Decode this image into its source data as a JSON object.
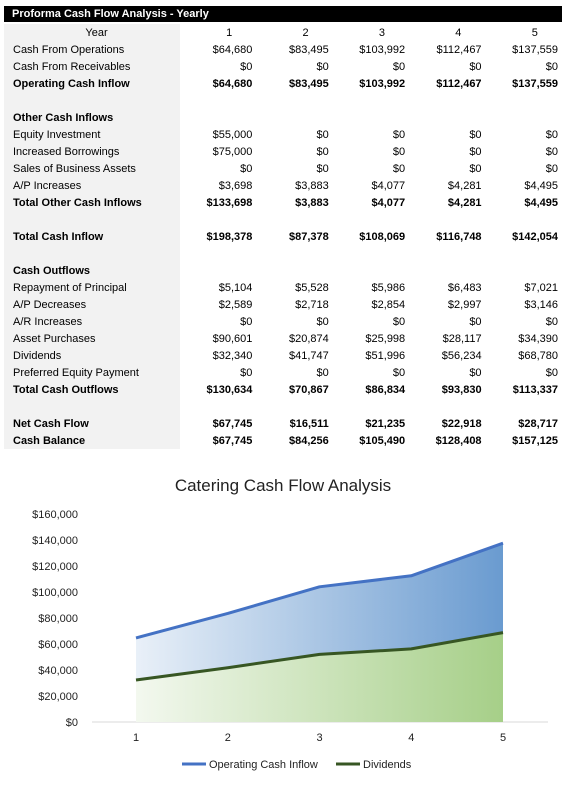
{
  "table": {
    "title": "Proforma Cash Flow Analysis - Yearly",
    "rows": [
      {
        "label": "Year",
        "values": [
          "1",
          "2",
          "3",
          "4",
          "5"
        ],
        "style": "hdr"
      },
      {
        "label": "Cash From Operations",
        "values": [
          "$64,680",
          "$83,495",
          "$103,992",
          "$112,467",
          "$137,559"
        ],
        "style": ""
      },
      {
        "label": "Cash From Receivables",
        "values": [
          "$0",
          "$0",
          "$0",
          "$0",
          "$0"
        ],
        "style": ""
      },
      {
        "label": "Operating Cash Inflow",
        "values": [
          "$64,680",
          "$83,495",
          "$103,992",
          "$112,467",
          "$137,559"
        ],
        "style": "bold"
      },
      {
        "label": "",
        "values": [],
        "style": "spacer"
      },
      {
        "label": "Other Cash Inflows",
        "values": [],
        "style": "bold"
      },
      {
        "label": "Equity Investment",
        "values": [
          "$55,000",
          "$0",
          "$0",
          "$0",
          "$0"
        ],
        "style": ""
      },
      {
        "label": "Increased Borrowings",
        "values": [
          "$75,000",
          "$0",
          "$0",
          "$0",
          "$0"
        ],
        "style": ""
      },
      {
        "label": "Sales of Business Assets",
        "values": [
          "$0",
          "$0",
          "$0",
          "$0",
          "$0"
        ],
        "style": ""
      },
      {
        "label": "A/P Increases",
        "values": [
          "$3,698",
          "$3,883",
          "$4,077",
          "$4,281",
          "$4,495"
        ],
        "style": ""
      },
      {
        "label": "Total Other Cash Inflows",
        "values": [
          "$133,698",
          "$3,883",
          "$4,077",
          "$4,281",
          "$4,495"
        ],
        "style": "bold"
      },
      {
        "label": "",
        "values": [],
        "style": "spacer"
      },
      {
        "label": "Total Cash Inflow",
        "values": [
          "$198,378",
          "$87,378",
          "$108,069",
          "$116,748",
          "$142,054"
        ],
        "style": "bold"
      },
      {
        "label": "",
        "values": [],
        "style": "spacer"
      },
      {
        "label": "Cash Outflows",
        "values": [],
        "style": "bold"
      },
      {
        "label": "Repayment of Principal",
        "values": [
          "$5,104",
          "$5,528",
          "$5,986",
          "$6,483",
          "$7,021"
        ],
        "style": ""
      },
      {
        "label": "A/P Decreases",
        "values": [
          "$2,589",
          "$2,718",
          "$2,854",
          "$2,997",
          "$3,146"
        ],
        "style": ""
      },
      {
        "label": "A/R Increases",
        "values": [
          "$0",
          "$0",
          "$0",
          "$0",
          "$0"
        ],
        "style": ""
      },
      {
        "label": "Asset Purchases",
        "values": [
          "$90,601",
          "$20,874",
          "$25,998",
          "$28,117",
          "$34,390"
        ],
        "style": ""
      },
      {
        "label": "Dividends",
        "values": [
          "$32,340",
          "$41,747",
          "$51,996",
          "$56,234",
          "$68,780"
        ],
        "style": ""
      },
      {
        "label": "Preferred Equity Payment",
        "values": [
          "$0",
          "$0",
          "$0",
          "$0",
          "$0"
        ],
        "style": ""
      },
      {
        "label": "Total Cash Outflows",
        "values": [
          "$130,634",
          "$70,867",
          "$86,834",
          "$93,830",
          "$113,337"
        ],
        "style": "bold"
      },
      {
        "label": "",
        "values": [],
        "style": "spacer"
      },
      {
        "label": "Net Cash Flow",
        "values": [
          "$67,745",
          "$16,511",
          "$21,235",
          "$22,918",
          "$28,717"
        ],
        "style": "bold"
      },
      {
        "label": "Cash Balance",
        "values": [
          "$67,745",
          "$84,256",
          "$105,490",
          "$128,408",
          "$157,125"
        ],
        "style": "bold"
      }
    ]
  },
  "chart_data": {
    "type": "area",
    "title": "Catering Cash Flow Analysis",
    "categories": [
      "1",
      "2",
      "3",
      "4",
      "5"
    ],
    "series": [
      {
        "name": "Operating Cash Inflow",
        "values": [
          64680,
          83495,
          103992,
          112467,
          137559
        ],
        "color": "#4472c4",
        "fill": "#6fa0d2"
      },
      {
        "name": "Dividends",
        "values": [
          32340,
          41747,
          51996,
          56234,
          68780
        ],
        "color": "#375623",
        "fill": "#a9d18e"
      }
    ],
    "ylim": [
      0,
      160000
    ],
    "yticks": [
      "$0",
      "$20,000",
      "$40,000",
      "$60,000",
      "$80,000",
      "$100,000",
      "$120,000",
      "$140,000",
      "$160,000"
    ],
    "xlabel": "",
    "ylabel": "",
    "grid": false,
    "legend": "bottom"
  }
}
